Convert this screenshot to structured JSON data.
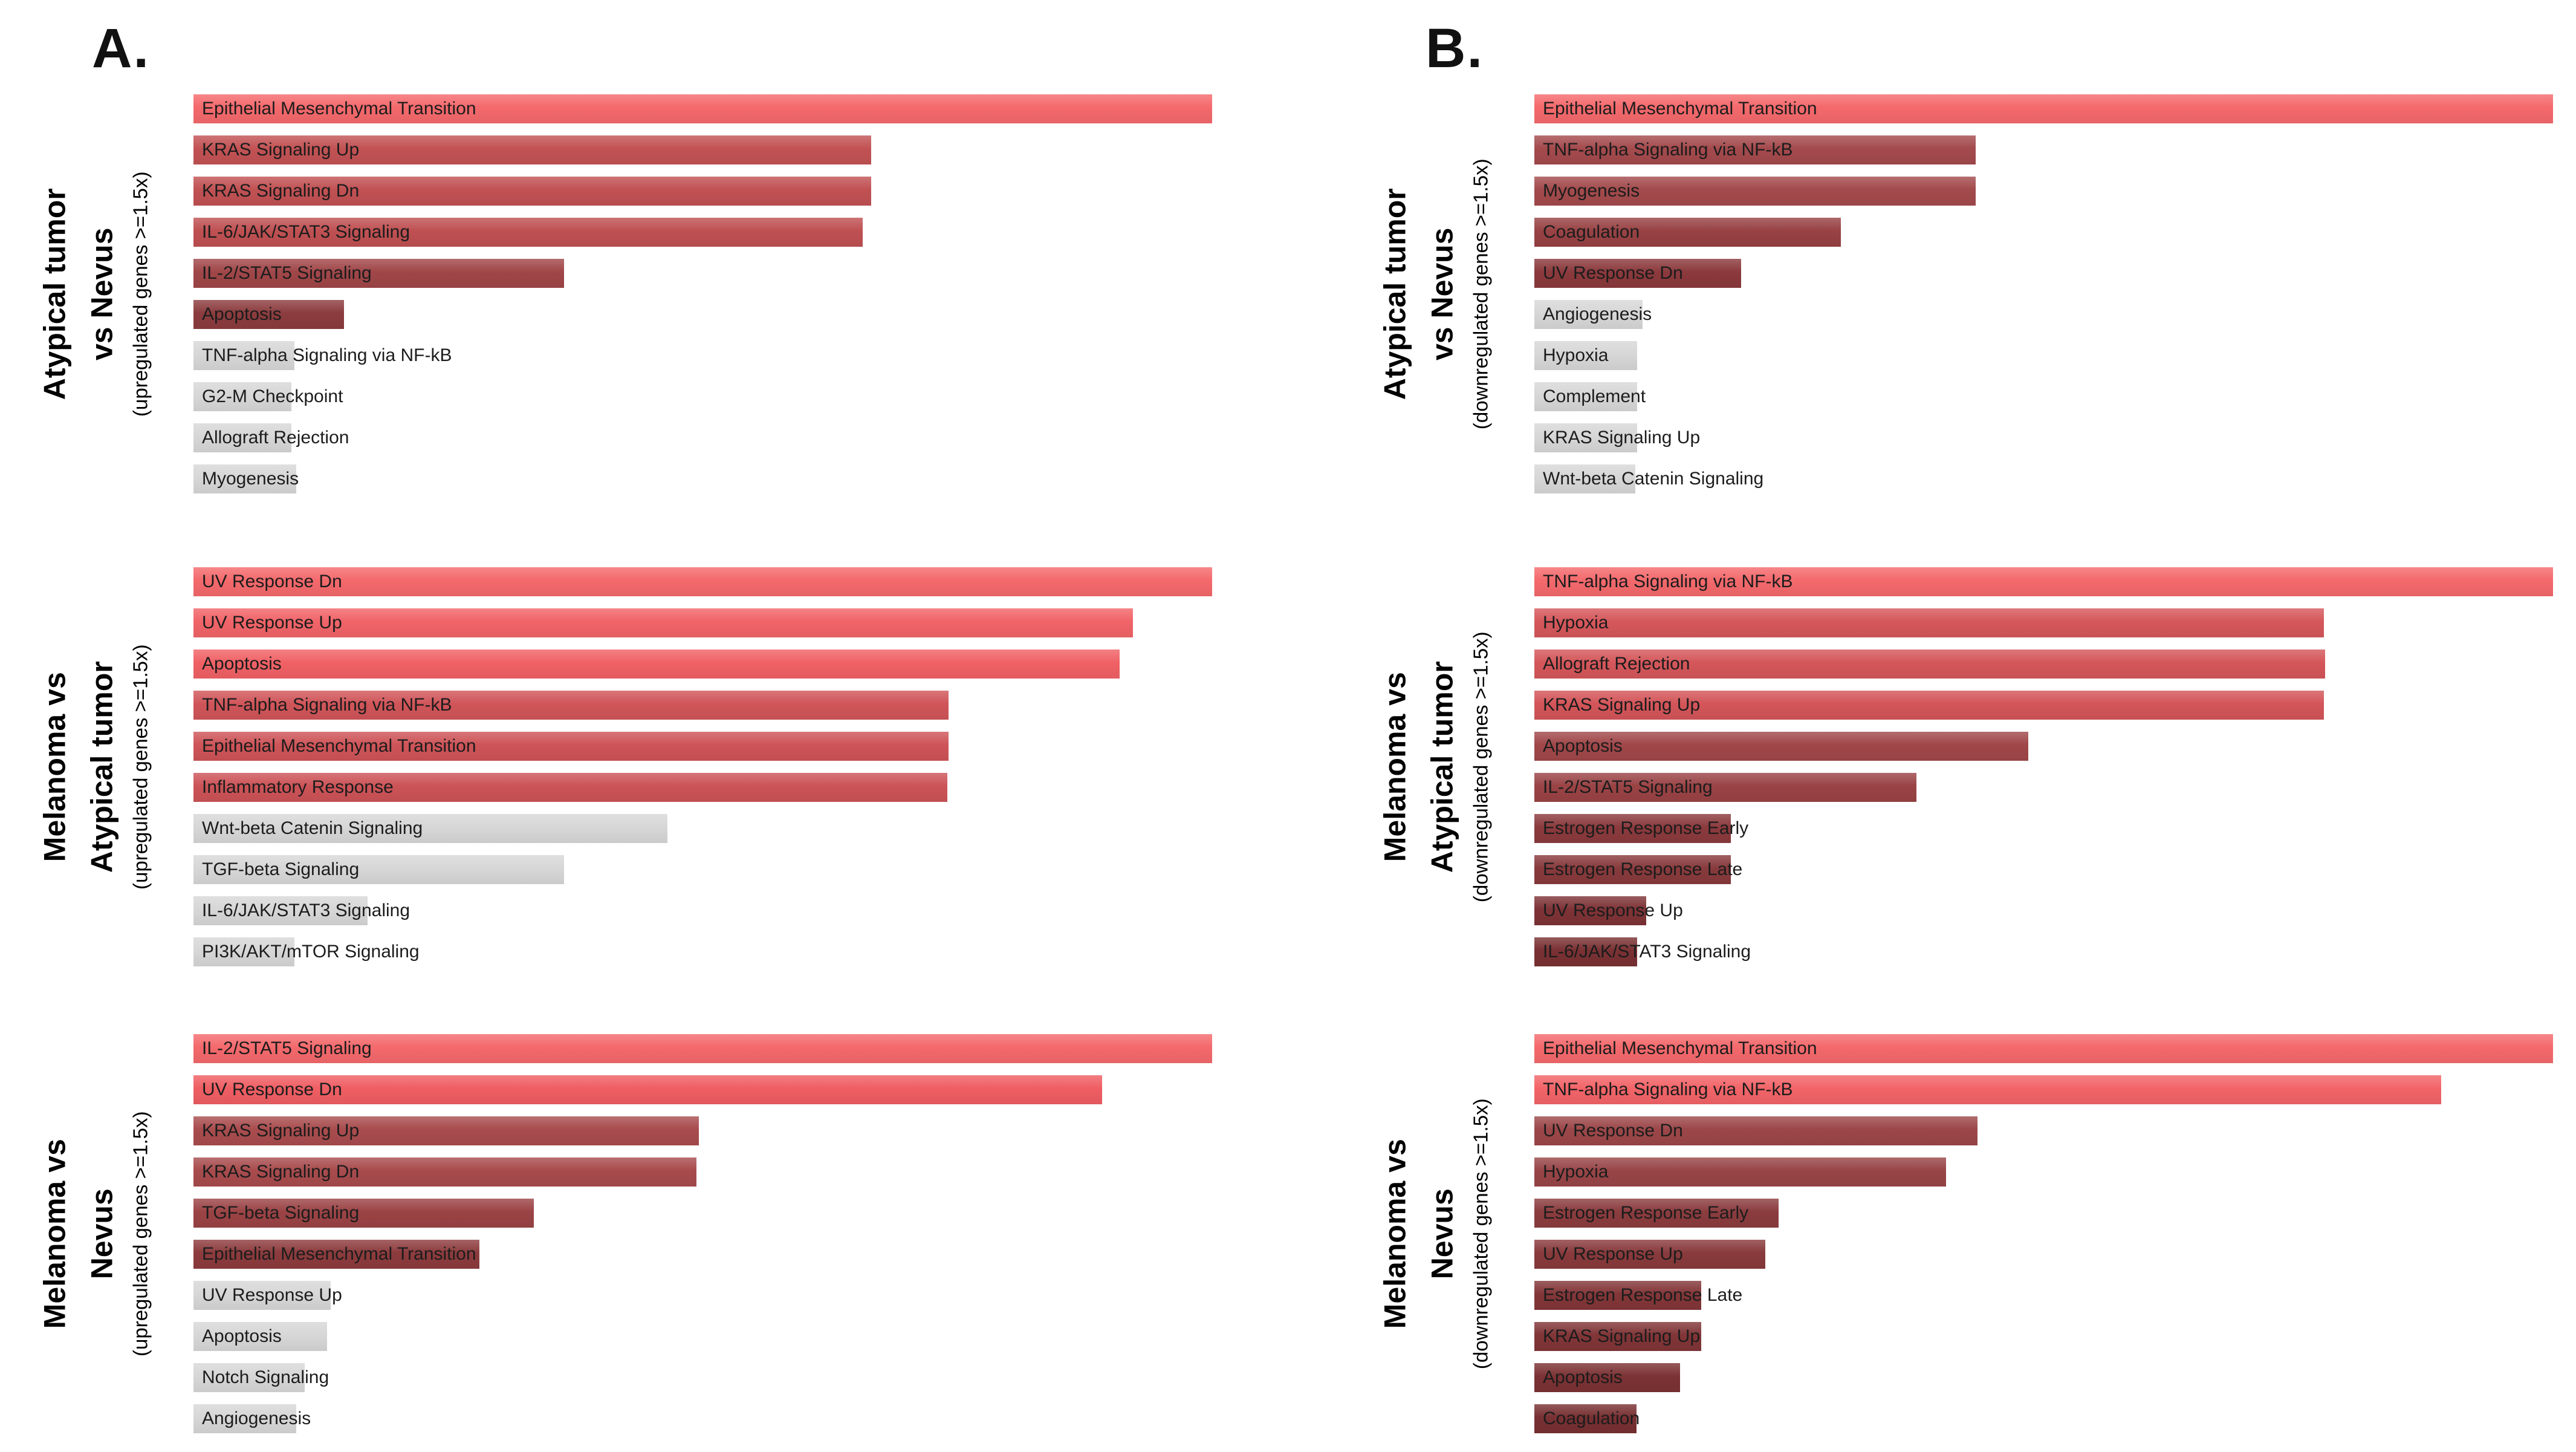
{
  "figure": {
    "panel_letters": [
      "A.",
      "B."
    ],
    "background": "#FFFFFF"
  },
  "palette": {
    "significance_high": "#F4696C",
    "significance_low": "#783032",
    "not_significant_gray": "#D7D7D7",
    "label_text": "#1C1C1C",
    "title_text": "#000000"
  },
  "chart_data": [
    {
      "type": "bar",
      "orientation": "horizontal",
      "panel": "A",
      "title": "Atypical tumor vs Nevus",
      "title_lines": [
        "Atypical tumor",
        "vs Nevus"
      ],
      "subtitle": "(upregulated genes >=1.5x)",
      "value_unit": "percent_of_longest_bar (no numeric axis shown)",
      "grid": false,
      "bars": [
        {
          "label": "Epithelial Mesenchymal Transition",
          "pct": 100,
          "color": "#F4696C"
        },
        {
          "label": "KRAS Signaling Up",
          "pct": 66.5,
          "color": "#C25254"
        },
        {
          "label": "KRAS Signaling Dn",
          "pct": 66.5,
          "color": "#C15153"
        },
        {
          "label": "IL-6/JAK/STAT3 Signaling",
          "pct": 65.7,
          "color": "#BF5052"
        },
        {
          "label": "IL-2/STAT5 Signaling",
          "pct": 36.4,
          "color": "#A04648"
        },
        {
          "label": "Apoptosis",
          "pct": 14.8,
          "color": "#8C3C3E"
        },
        {
          "label": "TNF-alpha Signaling via NF-kB",
          "pct": 9.9,
          "color": "#D7D7D7"
        },
        {
          "label": "G2-M Checkpoint",
          "pct": 9.6,
          "color": "#D7D7D7"
        },
        {
          "label": "Allograft Rejection",
          "pct": 9.6,
          "color": "#D7D7D7"
        },
        {
          "label": "Myogenesis",
          "pct": 10.1,
          "color": "#D7D7D7"
        }
      ]
    },
    {
      "type": "bar",
      "orientation": "horizontal",
      "panel": "A",
      "title": "Melanoma vs Atypical tumor",
      "title_lines": [
        "Melanoma vs",
        "Atypical tumor"
      ],
      "subtitle": "(upregulated genes >=1.5x)",
      "value_unit": "percent_of_longest_bar (no numeric axis shown)",
      "grid": false,
      "bars": [
        {
          "label": "UV Response Dn",
          "pct": 100,
          "color": "#F4696C"
        },
        {
          "label": "UV Response Up",
          "pct": 92.2,
          "color": "#F16468"
        },
        {
          "label": "Apoptosis",
          "pct": 90.9,
          "color": "#F06165"
        },
        {
          "label": "TNF-alpha Signaling via NF-kB",
          "pct": 74.1,
          "color": "#D05559"
        },
        {
          "label": "Epithelial Mesenchymal Transition",
          "pct": 74.1,
          "color": "#CE5458"
        },
        {
          "label": "Inflammatory Response",
          "pct": 74.0,
          "color": "#CC5357"
        },
        {
          "label": "Wnt-beta Catenin Signaling",
          "pct": 46.5,
          "color": "#D7D7D7"
        },
        {
          "label": "TGF-beta Signaling",
          "pct": 36.4,
          "color": "#D7D7D7"
        },
        {
          "label": "IL-6/JAK/STAT3 Signaling",
          "pct": 17.1,
          "color": "#D7D7D7"
        },
        {
          "label": "PI3K/AKT/mTOR Signaling",
          "pct": 9.9,
          "color": "#D7D7D7"
        }
      ]
    },
    {
      "type": "bar",
      "orientation": "horizontal",
      "panel": "A",
      "title": "Melanoma vs Nevus",
      "title_lines": [
        "Melanoma vs",
        "Nevus"
      ],
      "subtitle": "(upregulated genes >=1.5x)",
      "value_unit": "percent_of_longest_bar (no numeric axis shown)",
      "grid": false,
      "bars": [
        {
          "label": "IL-2/STAT5 Signaling",
          "pct": 100,
          "color": "#F4696C"
        },
        {
          "label": "UV Response Dn",
          "pct": 89.2,
          "color": "#EF5E63"
        },
        {
          "label": "KRAS Signaling Up",
          "pct": 49.6,
          "color": "#A94C4E"
        },
        {
          "label": "KRAS Signaling Dn",
          "pct": 49.4,
          "color": "#A84B4D"
        },
        {
          "label": "TGF-beta Signaling",
          "pct": 33.4,
          "color": "#9B4345"
        },
        {
          "label": "Epithelial Mesenchymal Transition",
          "pct": 28.1,
          "color": "#8D3B3D"
        },
        {
          "label": "UV Response Up",
          "pct": 13.5,
          "color": "#D7D7D7"
        },
        {
          "label": "Apoptosis",
          "pct": 13.1,
          "color": "#D7D7D7"
        },
        {
          "label": "Notch Signaling",
          "pct": 10.9,
          "color": "#D7D7D7"
        },
        {
          "label": "Angiogenesis",
          "pct": 10.1,
          "color": "#D7D7D7"
        }
      ]
    },
    {
      "type": "bar",
      "orientation": "horizontal",
      "panel": "B",
      "title": "Atypical tumor vs Nevus",
      "title_lines": [
        "Atypical tumor",
        "vs Nevus"
      ],
      "subtitle": "(downregulated genes >=1.5x)",
      "value_unit": "percent_of_longest_bar (no numeric axis shown)",
      "grid": false,
      "bars": [
        {
          "label": "Epithelial Mesenchymal Transition",
          "pct": 100,
          "color": "#F4696C"
        },
        {
          "label": "TNF-alpha Signaling via NF-kB",
          "pct": 43.3,
          "color": "#A44A4D"
        },
        {
          "label": "Myogenesis",
          "pct": 43.3,
          "color": "#A34A4C"
        },
        {
          "label": "Coagulation",
          "pct": 30.1,
          "color": "#984244"
        },
        {
          "label": "UV Response Dn",
          "pct": 20.3,
          "color": "#8B393C"
        },
        {
          "label": "Angiogenesis",
          "pct": 10.6,
          "color": "#D7D7D7"
        },
        {
          "label": "Hypoxia",
          "pct": 10.1,
          "color": "#D7D7D7"
        },
        {
          "label": "Complement",
          "pct": 10.1,
          "color": "#D7D7D7"
        },
        {
          "label": "KRAS Signaling Up",
          "pct": 10.1,
          "color": "#D7D7D7"
        },
        {
          "label": "Wnt-beta Catenin Signaling",
          "pct": 9.9,
          "color": "#D7D7D7"
        }
      ]
    },
    {
      "type": "bar",
      "orientation": "horizontal",
      "panel": "B",
      "title": "Melanoma vs Atypical tumor",
      "title_lines": [
        "Melanoma vs",
        "Atypical tumor"
      ],
      "subtitle": "(downregulated genes >=1.5x)",
      "value_unit": "percent_of_longest_bar (no numeric axis shown)",
      "grid": false,
      "bars": [
        {
          "label": "TNF-alpha Signaling via NF-kB",
          "pct": 100,
          "color": "#F4696C"
        },
        {
          "label": "Hypoxia",
          "pct": 77.5,
          "color": "#D5575B"
        },
        {
          "label": "Allograft Rejection",
          "pct": 77.6,
          "color": "#D4565A"
        },
        {
          "label": "KRAS Signaling Up",
          "pct": 77.5,
          "color": "#D35559"
        },
        {
          "label": "Apoptosis",
          "pct": 48.5,
          "color": "#A04749"
        },
        {
          "label": "IL-2/STAT5 Signaling",
          "pct": 37.5,
          "color": "#9A4345"
        },
        {
          "label": "Estrogen Response Early",
          "pct": 19.3,
          "color": "#8B3A3D"
        },
        {
          "label": "Estrogen Response Late",
          "pct": 19.3,
          "color": "#883A3C"
        },
        {
          "label": "UV Response Up",
          "pct": 11.0,
          "color": "#7E3336"
        },
        {
          "label": "IL-6/JAK/STAT3 Signaling",
          "pct": 10.1,
          "color": "#7A3133"
        }
      ]
    },
    {
      "type": "bar",
      "orientation": "horizontal",
      "panel": "B",
      "title": "Melanoma vs Nevus",
      "title_lines": [
        "Melanoma vs",
        "Nevus"
      ],
      "subtitle": "(downregulated genes >=1.5x)",
      "value_unit": "percent_of_longest_bar (no numeric axis shown)",
      "grid": false,
      "bars": [
        {
          "label": "Epithelial Mesenchymal Transition",
          "pct": 100,
          "color": "#F4696C"
        },
        {
          "label": "TNF-alpha Signaling via NF-kB",
          "pct": 89.0,
          "color": "#F26468"
        },
        {
          "label": "UV Response Dn",
          "pct": 43.5,
          "color": "#9C4749"
        },
        {
          "label": "Hypoxia",
          "pct": 40.4,
          "color": "#984547"
        },
        {
          "label": "Estrogen Response Early",
          "pct": 24.0,
          "color": "#8B3C3E"
        },
        {
          "label": "UV Response Up",
          "pct": 22.7,
          "color": "#893A3C"
        },
        {
          "label": "Estrogen Response Late",
          "pct": 16.4,
          "color": "#833638"
        },
        {
          "label": "KRAS Signaling Up",
          "pct": 16.4,
          "color": "#813537"
        },
        {
          "label": "Apoptosis",
          "pct": 14.3,
          "color": "#7C3234"
        },
        {
          "label": "Coagulation",
          "pct": 10.0,
          "color": "#783032"
        }
      ]
    }
  ]
}
